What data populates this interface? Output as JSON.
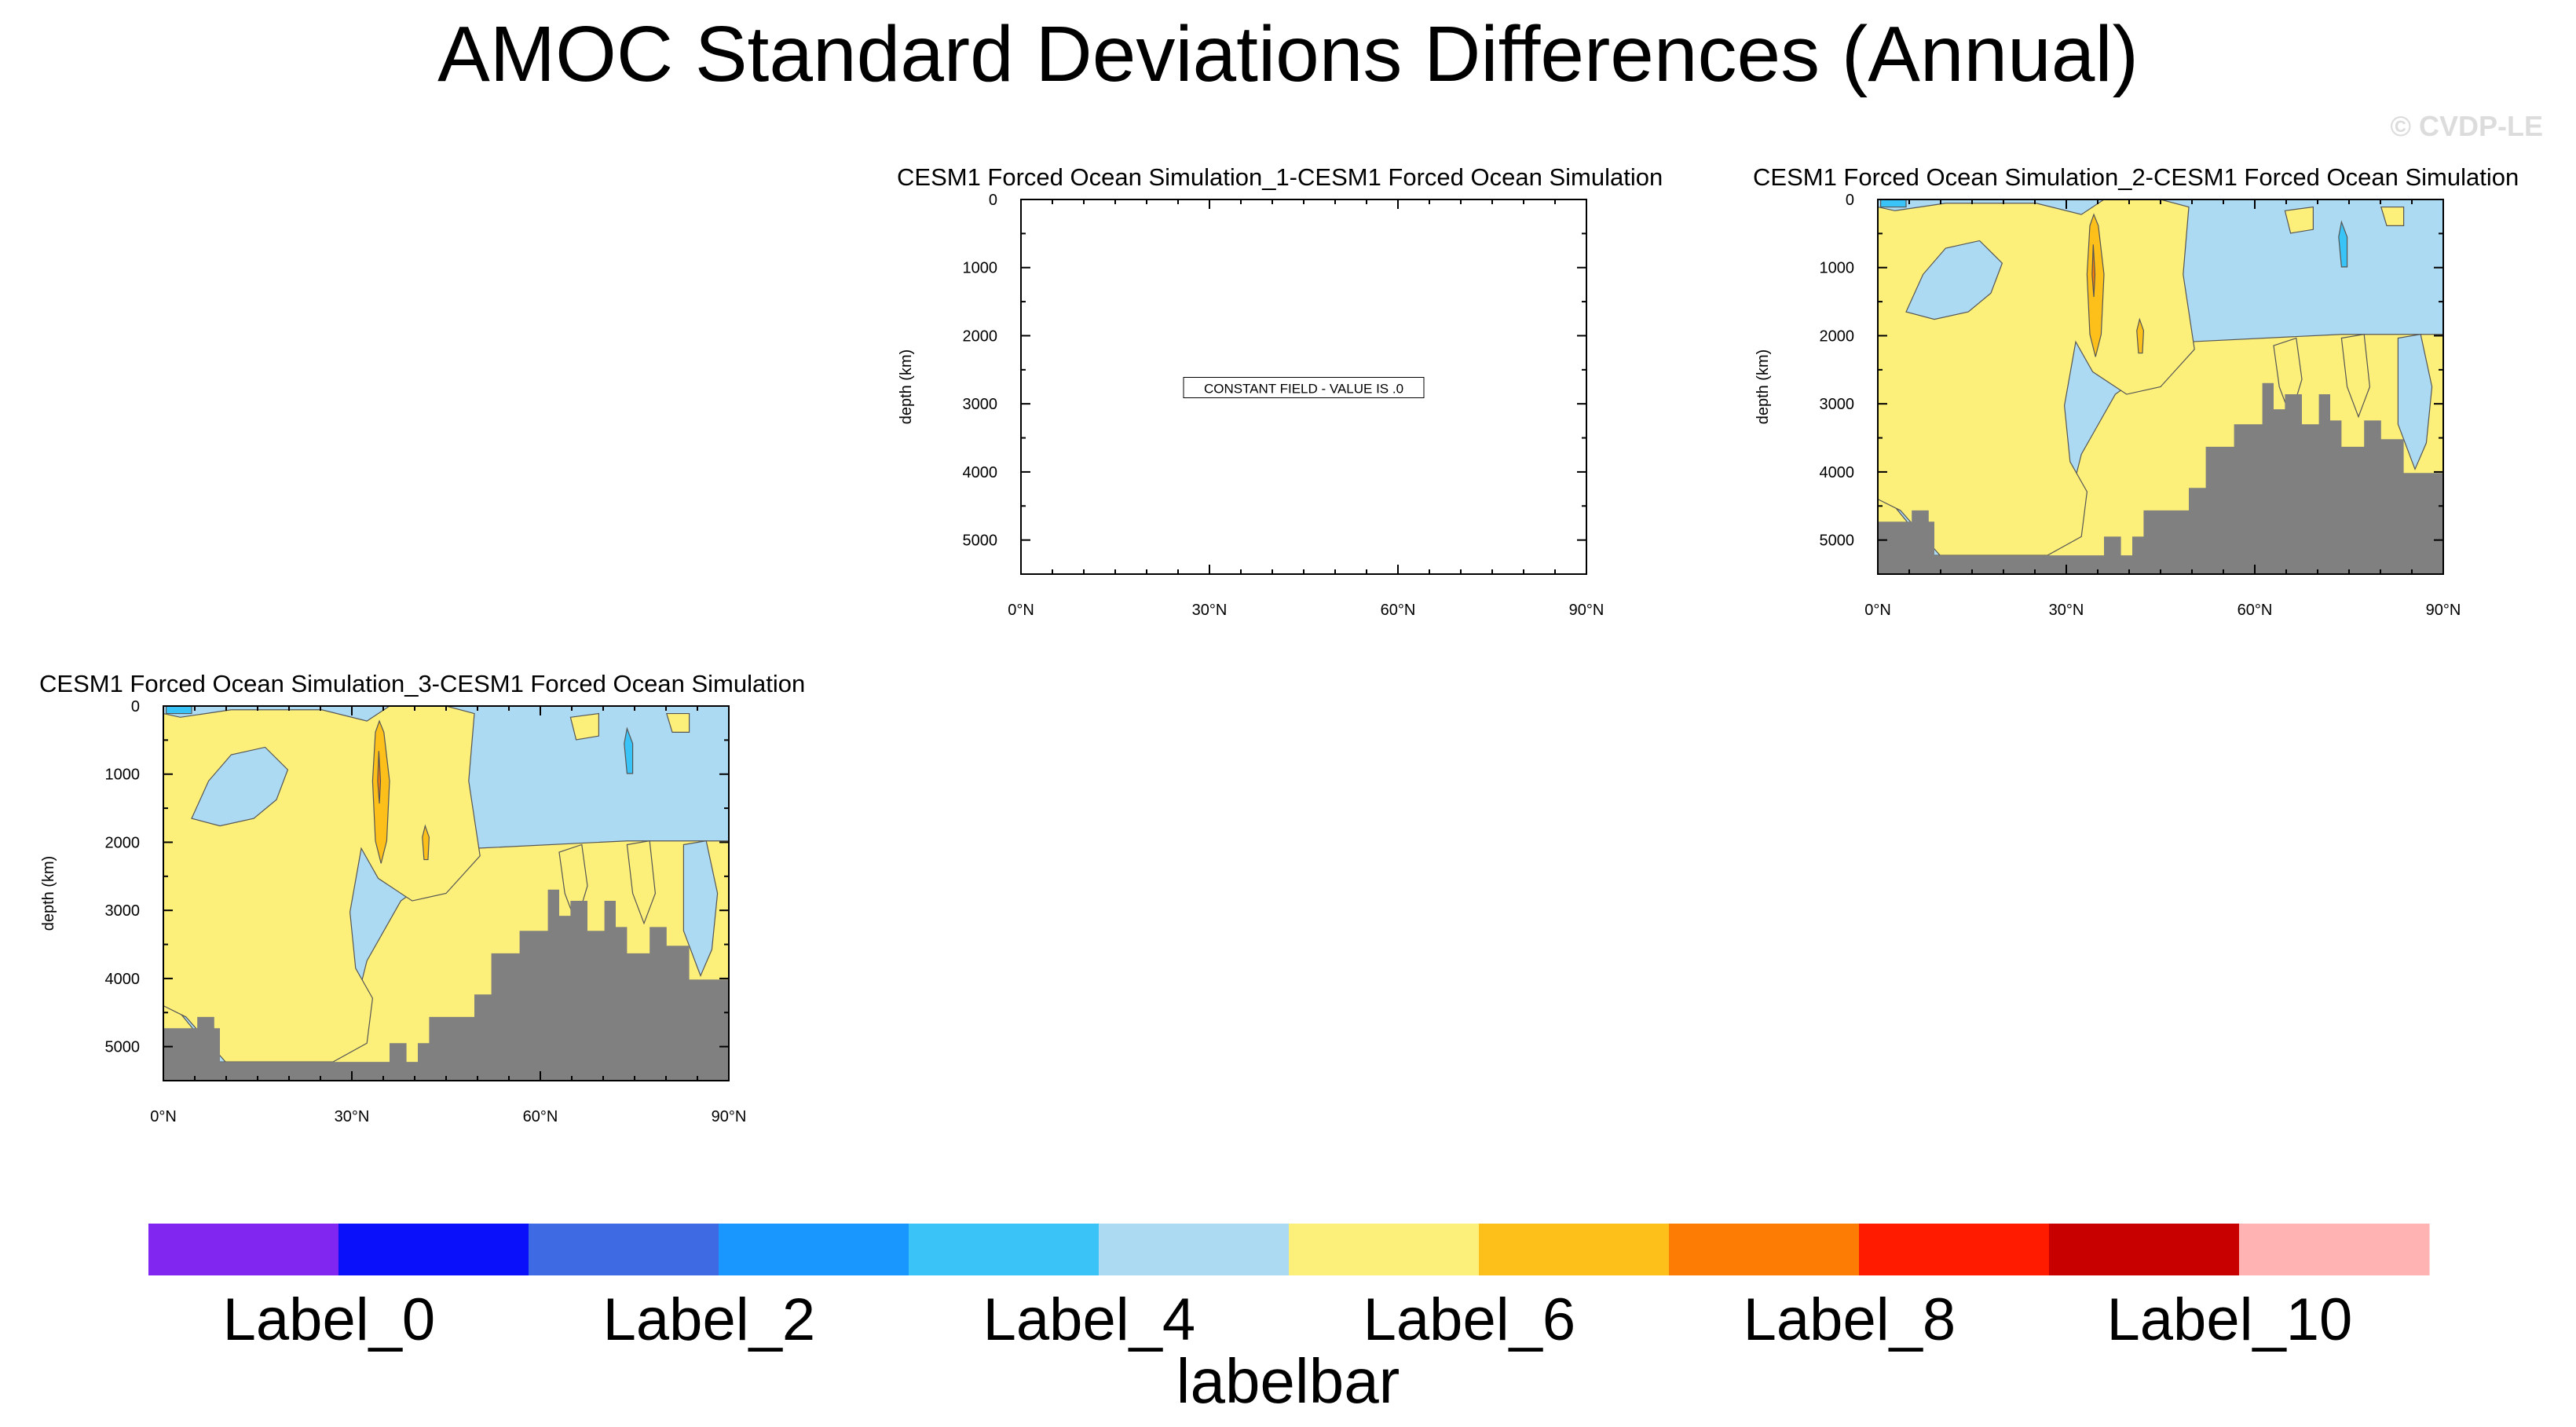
{
  "title": "AMOC Standard Deviations Differences (Annual)",
  "watermark": "© CVDP-LE",
  "colors": {
    "land": "#808080",
    "axis": "#000000",
    "palette": [
      "#8026f0",
      "#0a11fa",
      "#3e6be3",
      "#1a97ff",
      "#39c3f7",
      "#acdaf2",
      "#fdf07a",
      "#fdbf1a",
      "#fd7d04",
      "#ff1b00",
      "#c80000",
      "#ffb3b3"
    ]
  },
  "chart_data": [
    {
      "type": "contour",
      "title": "CESM1 Forced Ocean Simulation_1-CESM1 Forced Ocean Simulation",
      "ylabel": "depth (km)",
      "xlabel": "",
      "xlim": [
        0,
        90
      ],
      "ylim": [
        5500,
        0
      ],
      "xticks": [
        0,
        30,
        60,
        90
      ],
      "xtick_labels": [
        "0°N",
        "30°N",
        "60°N",
        "90°N"
      ],
      "yticks": [
        0,
        1000,
        2000,
        3000,
        4000,
        5000
      ],
      "ytick_labels": [
        "0",
        "1000",
        "2000",
        "3000",
        "4000",
        "5000"
      ],
      "constant_field": true,
      "annotation": "CONSTANT FIELD - VALUE IS .0"
    },
    {
      "type": "contour",
      "title": "CESM1 Forced Ocean Simulation_2-CESM1 Forced Ocean Simulation",
      "ylabel": "depth (km)",
      "xlabel": "",
      "xlim": [
        0,
        90
      ],
      "ylim": [
        5500,
        0
      ],
      "xticks": [
        0,
        30,
        60,
        90
      ],
      "xtick_labels": [
        "0°N",
        "30°N",
        "60°N",
        "90°N"
      ],
      "yticks": [
        0,
        1000,
        2000,
        3000,
        4000,
        5000
      ],
      "ytick_labels": [
        "0",
        "1000",
        "2000",
        "3000",
        "4000",
        "5000"
      ],
      "constant_field": false,
      "annotation": ""
    },
    {
      "type": "contour",
      "title": "CESM1 Forced Ocean Simulation_3-CESM1 Forced Ocean Simulation",
      "ylabel": "depth (km)",
      "xlabel": "",
      "xlim": [
        0,
        90
      ],
      "ylim": [
        5500,
        0
      ],
      "xticks": [
        0,
        30,
        60,
        90
      ],
      "xtick_labels": [
        "0°N",
        "30°N",
        "60°N",
        "90°N"
      ],
      "yticks": [
        0,
        1000,
        2000,
        3000,
        4000,
        5000
      ],
      "ytick_labels": [
        "0",
        "1000",
        "2000",
        "3000",
        "4000",
        "5000"
      ],
      "constant_field": false,
      "annotation": ""
    }
  ],
  "labelbar": {
    "title": "labelbar",
    "labels": [
      "Label_0",
      "Label_2",
      "Label_4",
      "Label_6",
      "Label_8",
      "Label_10"
    ]
  }
}
